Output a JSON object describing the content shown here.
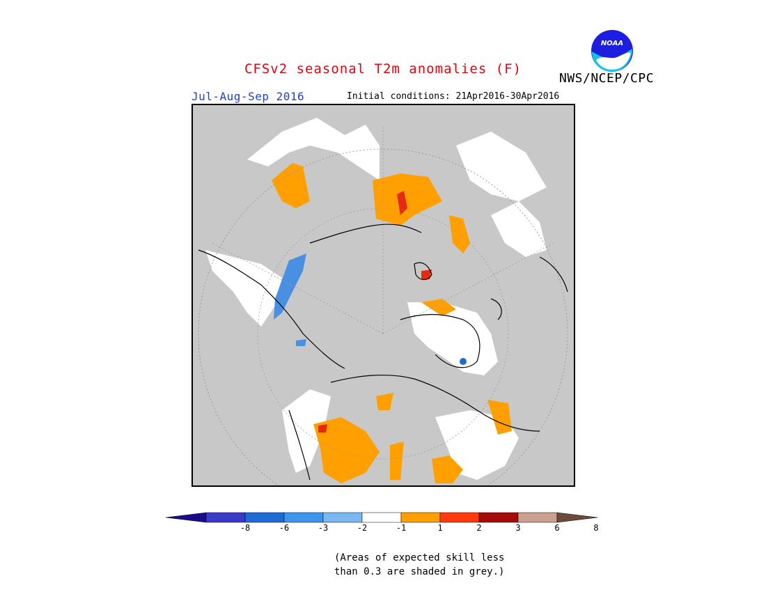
{
  "header": {
    "title": "CFSv2 seasonal T2m anomalies (F)",
    "org": "NWS/NCEP/CPC",
    "period": "Jul-Aug-Sep 2016",
    "initial_conditions": "Initial conditions: 21Apr2016-30Apr2016",
    "logo_text": "NOAA"
  },
  "legend": {
    "colors": [
      "#1a0a8c",
      "#3b39c8",
      "#1f6bd6",
      "#3d95ec",
      "#7ab8f2",
      "#ffffff",
      "#ffa000",
      "#ff3a0e",
      "#a50a0a",
      "#caa090",
      "#6e4a3a"
    ],
    "labels": [
      "-8",
      "-6",
      "-3",
      "-2",
      "-1",
      "1",
      "2",
      "3",
      "6",
      "8"
    ]
  },
  "note": {
    "line1": "(Areas of expected skill less",
    "line2": "than 0.3 are shaded in grey.)"
  },
  "map": {
    "background_color": "#c8c8c8",
    "ocean_color": "#ffffff",
    "warm_color": "#ffa000",
    "hot_color": "#e52a10",
    "cool_color": "#4a90e2"
  }
}
